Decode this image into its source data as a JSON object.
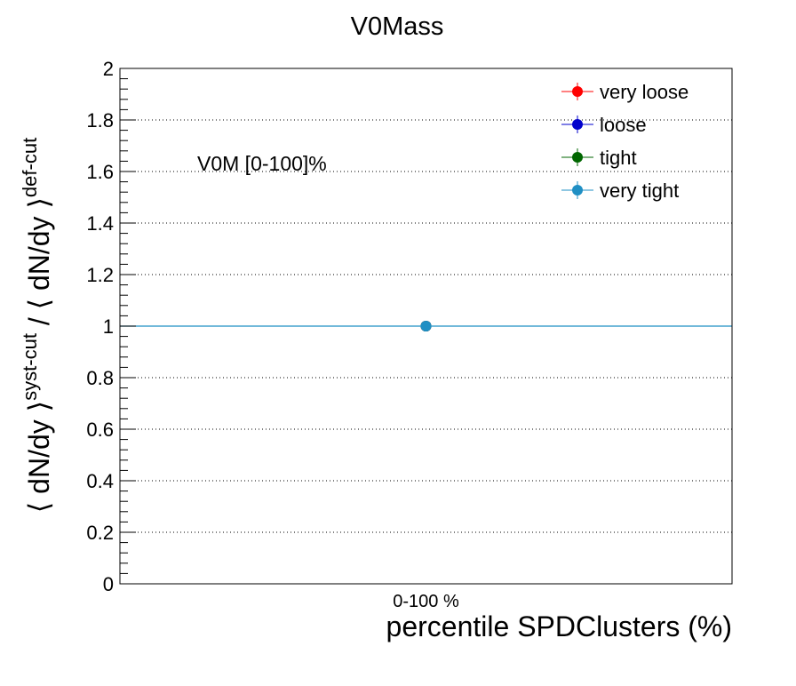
{
  "chart_data": {
    "type": "scatter",
    "title": "V0Mass",
    "xlabel": "percentile SPDClusters (%)",
    "ylabel": {
      "open": "⟨ dN/dy ⟩",
      "sup1": "syst-cut",
      "sep": " / ",
      "close": "⟨ dN/dy ⟩",
      "sup2": "def-cut"
    },
    "annotation": "V0M [0-100]%",
    "categories": [
      "0-100 %"
    ],
    "ylim": [
      0,
      2
    ],
    "yticks": [
      "0",
      "0.2",
      "0.4",
      "0.6",
      "0.8",
      "1",
      "1.2",
      "1.4",
      "1.6",
      "1.8",
      "2"
    ],
    "grid": "horizontal-dotted",
    "reference_line": {
      "y": 1,
      "color": "#1f8fc4"
    },
    "legend_position": "top-right",
    "series": [
      {
        "name": "very loose",
        "color": "#ff0000",
        "values": [
          1.0
        ]
      },
      {
        "name": "loose",
        "color": "#0000cc",
        "values": [
          1.0
        ]
      },
      {
        "name": "tight",
        "color": "#006600",
        "values": [
          1.0
        ]
      },
      {
        "name": "very tight",
        "color": "#1f8fc4",
        "values": [
          1.0
        ]
      }
    ]
  }
}
